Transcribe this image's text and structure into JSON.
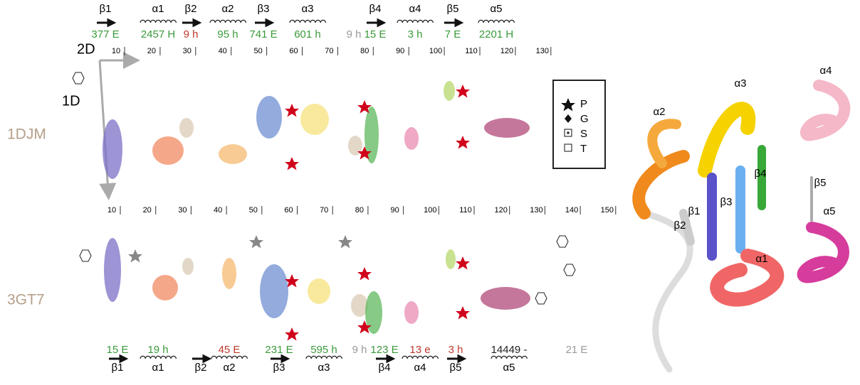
{
  "top_panel": {
    "label": "1DJM",
    "axis_2d": "2D",
    "axis_1d": "1D",
    "ticks": [
      "10",
      "20",
      "30",
      "40",
      "50",
      "60",
      "70",
      "80",
      "90",
      "100",
      "110",
      "120",
      "130"
    ],
    "elements": [
      {
        "name": "β1",
        "count": "377 E",
        "color": "#3a9a3a"
      },
      {
        "name": "α1",
        "count": "2457 H",
        "color": "#3a9a3a"
      },
      {
        "name": "β2",
        "count": "9 h",
        "color": "#c0392b"
      },
      {
        "name": "α2",
        "count": "95 h",
        "color": "#3a9a3a"
      },
      {
        "name": "β3",
        "count": "741 E",
        "color": "#3a9a3a"
      },
      {
        "name": "α3",
        "count": "601 h",
        "color": "#3a9a3a"
      },
      {
        "name": null,
        "count": "9 h",
        "color": "#999999"
      },
      {
        "name": "β4",
        "count": "15 E",
        "color": "#3a9a3a"
      },
      {
        "name": "α4",
        "count": "3 h",
        "color": "#3a9a3a"
      },
      {
        "name": "β5",
        "count": "7 E",
        "color": "#3a9a3a"
      },
      {
        "name": "α5",
        "count": "2201 H",
        "color": "#3a9a3a"
      }
    ]
  },
  "bottom_panel": {
    "label": "3GT7",
    "ticks": [
      "10",
      "20",
      "30",
      "40",
      "50",
      "60",
      "70",
      "80",
      "90",
      "100",
      "110",
      "120",
      "130",
      "140",
      "150"
    ],
    "elements": [
      {
        "name": "β1",
        "count": "15 E",
        "color": "#3a9a3a"
      },
      {
        "name": "α1",
        "count": "19 h",
        "color": "#3a9a3a"
      },
      {
        "name": "β2",
        "count": null,
        "color": null
      },
      {
        "name": "α2",
        "count": "45 E",
        "color": "#c0392b"
      },
      {
        "name": "β3",
        "count": "231 E",
        "color": "#3a9a3a"
      },
      {
        "name": "α3",
        "count": "595 h",
        "color": "#3a9a3a"
      },
      {
        "name": null,
        "count": "9 h",
        "color": "#999999"
      },
      {
        "name": "β4",
        "count": "123 E",
        "color": "#3a9a3a"
      },
      {
        "name": "α4",
        "count": "13 e",
        "color": "#c0392b"
      },
      {
        "name": "β5",
        "count": "3 h",
        "color": "#c0392b"
      },
      {
        "name": "α5",
        "count": "14449 -",
        "color": "#222222"
      },
      {
        "name": null,
        "count": "21 E",
        "color": "#999999"
      }
    ]
  },
  "legend": [
    "P",
    "G",
    "S",
    "T"
  ],
  "ribbon_labels": [
    "α3",
    "α4",
    "α2",
    "β4",
    "β5",
    "β1",
    "β3",
    "β2",
    "α5",
    "α1"
  ]
}
